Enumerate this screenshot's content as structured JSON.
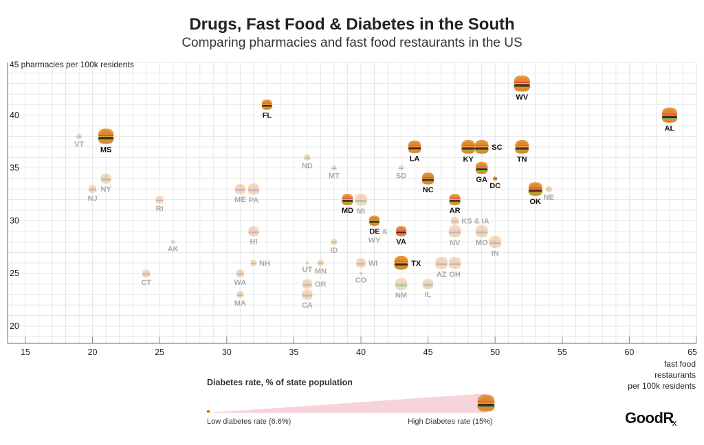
{
  "header": {
    "title": "Drugs, Fast Food & Diabetes in the South",
    "subtitle": "Comparing pharmacies and fast food restaurants in the US"
  },
  "legend": {
    "title": "Diabetes rate, % of state population",
    "low_label": "Low diabetes rate (6.6%)",
    "high_label": "High Diabetes rate (15%)",
    "low_value": 6.6,
    "high_value": 15,
    "wedge_color": "#f7d3da"
  },
  "brand": {
    "logo_main": "GoodR",
    "logo_sub": "x"
  },
  "colors": {
    "highlight_label": "#111111",
    "muted_label": "#aaaaaa",
    "grid": "#e6e6e6",
    "axis": "#888888"
  },
  "chart_data": {
    "type": "scatter",
    "title": "Drugs, Fast Food & Diabetes in the South",
    "subtitle": "Comparing pharmacies and fast food restaurants in the US",
    "xlabel": "fast food restaurants per 100k residents",
    "xlabel_lines": [
      "fast food",
      "restaurants",
      "per 100k residents"
    ],
    "ylabel": "pharmacies per 100k residents",
    "ylabel_top": "45 pharmacies per 100k residents",
    "xlim": [
      13.67,
      65
    ],
    "ylim": [
      18.37,
      45
    ],
    "xticks": [
      15,
      20,
      25,
      30,
      35,
      40,
      45,
      50,
      55,
      60,
      65
    ],
    "yticks": [
      20,
      25,
      30,
      35,
      40
    ],
    "grid": true,
    "grid_step": 1,
    "size_encoding": "Diabetes rate, % of state population",
    "marker": "hamburger",
    "points": [
      {
        "label": "WV",
        "x": 52,
        "y": 43,
        "diabetes": 14.5,
        "highlight": true,
        "lpos": "below"
      },
      {
        "label": "FL",
        "x": 33,
        "y": 41,
        "diabetes": 11.0,
        "highlight": true,
        "lpos": "below"
      },
      {
        "label": "AL",
        "x": 63,
        "y": 40,
        "diabetes": 14.0,
        "highlight": true,
        "lpos": "below"
      },
      {
        "label": "VT",
        "x": 19,
        "y": 38,
        "diabetes": 8.0,
        "highlight": false,
        "lpos": "below"
      },
      {
        "label": "MS",
        "x": 21,
        "y": 38,
        "diabetes": 14.0,
        "highlight": true,
        "lpos": "below"
      },
      {
        "label": "LA",
        "x": 44,
        "y": 37,
        "diabetes": 12.5,
        "highlight": true,
        "lpos": "below"
      },
      {
        "label": "KY",
        "x": 48,
        "y": 37,
        "diabetes": 13.0,
        "highlight": true,
        "lpos": "below"
      },
      {
        "label": "SC",
        "x": 49,
        "y": 37,
        "diabetes": 13.0,
        "highlight": true,
        "lpos": "right"
      },
      {
        "label": "TN",
        "x": 52,
        "y": 37,
        "diabetes": 13.0,
        "highlight": true,
        "lpos": "below"
      },
      {
        "label": "ND",
        "x": 36,
        "y": 36,
        "diabetes": 8.5,
        "highlight": false,
        "lpos": "below"
      },
      {
        "label": "MT",
        "x": 38,
        "y": 35,
        "diabetes": 7.8,
        "highlight": false,
        "lpos": "below"
      },
      {
        "label": "SD",
        "x": 43,
        "y": 35,
        "diabetes": 7.8,
        "highlight": false,
        "lpos": "below"
      },
      {
        "label": "GA",
        "x": 49,
        "y": 35,
        "diabetes": 12.0,
        "highlight": true,
        "lpos": "below"
      },
      {
        "label": "NY",
        "x": 21,
        "y": 34,
        "diabetes": 11.0,
        "highlight": false,
        "lpos": "below"
      },
      {
        "label": "NC",
        "x": 45,
        "y": 34,
        "diabetes": 12.0,
        "highlight": true,
        "lpos": "below"
      },
      {
        "label": "DC",
        "x": 50,
        "y": 34,
        "diabetes": 7.2,
        "highlight": true,
        "lpos": "below"
      },
      {
        "label": "NJ",
        "x": 20,
        "y": 33,
        "diabetes": 9.5,
        "highlight": false,
        "lpos": "below"
      },
      {
        "label": "ME",
        "x": 31,
        "y": 33,
        "diabetes": 11.0,
        "highlight": false,
        "lpos": "below"
      },
      {
        "label": "PA",
        "x": 32,
        "y": 33,
        "diabetes": 11.5,
        "highlight": false,
        "lpos": "below"
      },
      {
        "label": "OK",
        "x": 53,
        "y": 33,
        "diabetes": 13.0,
        "highlight": true,
        "lpos": "below"
      },
      {
        "label": "NE",
        "x": 54,
        "y": 33,
        "diabetes": 8.5,
        "highlight": false,
        "lpos": "below"
      },
      {
        "label": "RI",
        "x": 25,
        "y": 32,
        "diabetes": 9.5,
        "highlight": false,
        "lpos": "below"
      },
      {
        "label": "MD",
        "x": 39,
        "y": 32,
        "diabetes": 11.5,
        "highlight": true,
        "lpos": "below"
      },
      {
        "label": "MI",
        "x": 40,
        "y": 32,
        "diabetes": 12.0,
        "highlight": false,
        "lpos": "below"
      },
      {
        "label": "AR",
        "x": 47,
        "y": 32,
        "diabetes": 11.5,
        "highlight": true,
        "lpos": "below"
      },
      {
        "label": "DE",
        "x": 41,
        "y": 30,
        "diabetes": 11.0,
        "highlight": true,
        "lpos": "below",
        "extra": " &",
        "extra2": "WY"
      },
      {
        "label": "KS & IA",
        "x": 47,
        "y": 30,
        "diabetes": 9.5,
        "highlight": false,
        "lpos": "right"
      },
      {
        "label": "HI",
        "x": 32,
        "y": 29,
        "diabetes": 11.0,
        "highlight": false,
        "lpos": "below"
      },
      {
        "label": "VA",
        "x": 43,
        "y": 29,
        "diabetes": 11.0,
        "highlight": true,
        "lpos": "below"
      },
      {
        "label": "NV",
        "x": 47,
        "y": 29,
        "diabetes": 12.0,
        "highlight": false,
        "lpos": "below"
      },
      {
        "label": "MO",
        "x": 49,
        "y": 29,
        "diabetes": 12.0,
        "highlight": false,
        "lpos": "below"
      },
      {
        "label": "AK",
        "x": 26,
        "y": 28,
        "diabetes": 7.2,
        "highlight": false,
        "lpos": "below"
      },
      {
        "label": "ID",
        "x": 38,
        "y": 28,
        "diabetes": 8.5,
        "highlight": false,
        "lpos": "below"
      },
      {
        "label": "IN",
        "x": 50,
        "y": 28,
        "diabetes": 12.0,
        "highlight": false,
        "lpos": "below"
      },
      {
        "label": "NH",
        "x": 32,
        "y": 26,
        "diabetes": 8.5,
        "highlight": false,
        "lpos": "right"
      },
      {
        "label": "UT",
        "x": 36,
        "y": 26,
        "diabetes": 6.6,
        "highlight": false,
        "lpos": "below"
      },
      {
        "label": "MN",
        "x": 37,
        "y": 26,
        "diabetes": 8.5,
        "highlight": false,
        "lpos": "below"
      },
      {
        "label": "WI",
        "x": 40,
        "y": 26,
        "diabetes": 10.5,
        "highlight": false,
        "lpos": "right"
      },
      {
        "label": "TX",
        "x": 43,
        "y": 26,
        "diabetes": 13.0,
        "highlight": true,
        "lpos": "right"
      },
      {
        "label": "AZ",
        "x": 46,
        "y": 26,
        "diabetes": 12.0,
        "highlight": false,
        "lpos": "below"
      },
      {
        "label": "OH",
        "x": 47,
        "y": 26,
        "diabetes": 12.0,
        "highlight": false,
        "lpos": "below"
      },
      {
        "label": "CT",
        "x": 24,
        "y": 25,
        "diabetes": 9.5,
        "highlight": false,
        "lpos": "below"
      },
      {
        "label": "WA",
        "x": 31,
        "y": 25,
        "diabetes": 9.5,
        "highlight": false,
        "lpos": "below"
      },
      {
        "label": "CO",
        "x": 40,
        "y": 25,
        "diabetes": 6.6,
        "highlight": false,
        "lpos": "below"
      },
      {
        "label": "OR",
        "x": 36,
        "y": 24,
        "diabetes": 10.5,
        "highlight": false,
        "lpos": "right"
      },
      {
        "label": "NM",
        "x": 43,
        "y": 24,
        "diabetes": 12.0,
        "highlight": false,
        "lpos": "below"
      },
      {
        "label": "IL",
        "x": 45,
        "y": 24,
        "diabetes": 11.0,
        "highlight": false,
        "lpos": "below"
      },
      {
        "label": "MA",
        "x": 31,
        "y": 23,
        "diabetes": 9.0,
        "highlight": false,
        "lpos": "below"
      },
      {
        "label": "CA",
        "x": 36,
        "y": 23,
        "diabetes": 11.0,
        "highlight": false,
        "lpos": "below"
      }
    ]
  }
}
